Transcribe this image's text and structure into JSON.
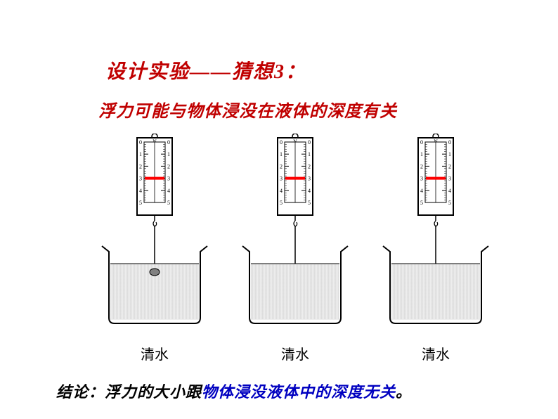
{
  "title": "设计实验——猜想3：",
  "subtitle": "浮力可能与物体浸没在液体的深度有关",
  "scale": {
    "label_n": "N",
    "ticks": [
      0,
      1,
      2,
      3,
      4,
      5
    ],
    "tick_fontsize": 8,
    "scale_bg": "#ffffff",
    "scale_border": "#000000",
    "indicator_color": "#ff0000",
    "indicator_value": 3
  },
  "beaker": {
    "outline": "#000000",
    "water_fill": "#dddddd",
    "water_line_spacing": 2,
    "ball_fill": "#808080"
  },
  "experiments": [
    {
      "label": "清水",
      "rod_depth": 8,
      "show_ball": true
    },
    {
      "label": "清水",
      "rod_depth": 50,
      "show_ball": false
    },
    {
      "label": "清水",
      "rod_depth": 75,
      "show_ball": false
    }
  ],
  "conclusion": {
    "prefix": "结论：浮力的大小跟",
    "highlight": "物体浸没液体中的深度无关",
    "suffix": "。",
    "prefix_color": "#000000",
    "highlight_color": "#0000c0",
    "fontsize": 22
  },
  "colors": {
    "title_color": "#c00000",
    "label_color": "#000000",
    "background": "#ffffff"
  }
}
